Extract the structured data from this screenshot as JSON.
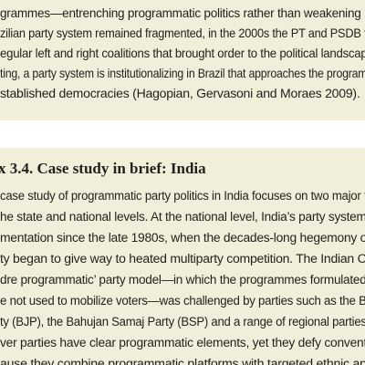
{
  "top_text": {
    "lines": [
      "grammes—entrenching programmatic politics rather than weakening i",
      "zilian party system remained fragmented, in the 2000s the PT and PSDB f",
      "egular left and right coalitions that brought order to the political landscap",
      "ting, a party system is institutionalizing in Brazil that approaches the program",
      "stablished democracies (Hagopian, Gervasoni and Moraes 2009)."
    ]
  },
  "box": {
    "title": "x 3.4. Case study in brief: India",
    "lines": [
      "case study of programmatic party politics in India focuses on two major t",
      "he state and national levels. At the national level, India’s party system",
      "mentation since the late 1980s, when the decades-long hegemony o",
      "ty began to give way to heated multiparty competition. The Indian C",
      "dre programmatic’ party model—in which the programmes formulated",
      "e not used to mobilize voters—was challenged by parties such as the B",
      "ty (BJP), the Bahujan Samaj Party (BSP) and a range of regional parties",
      "ver parties have clear programmatic elements, yet they defy convent",
      "ause they combine programmatic platforms with targeted ethnic ap"
    ]
  }
}
